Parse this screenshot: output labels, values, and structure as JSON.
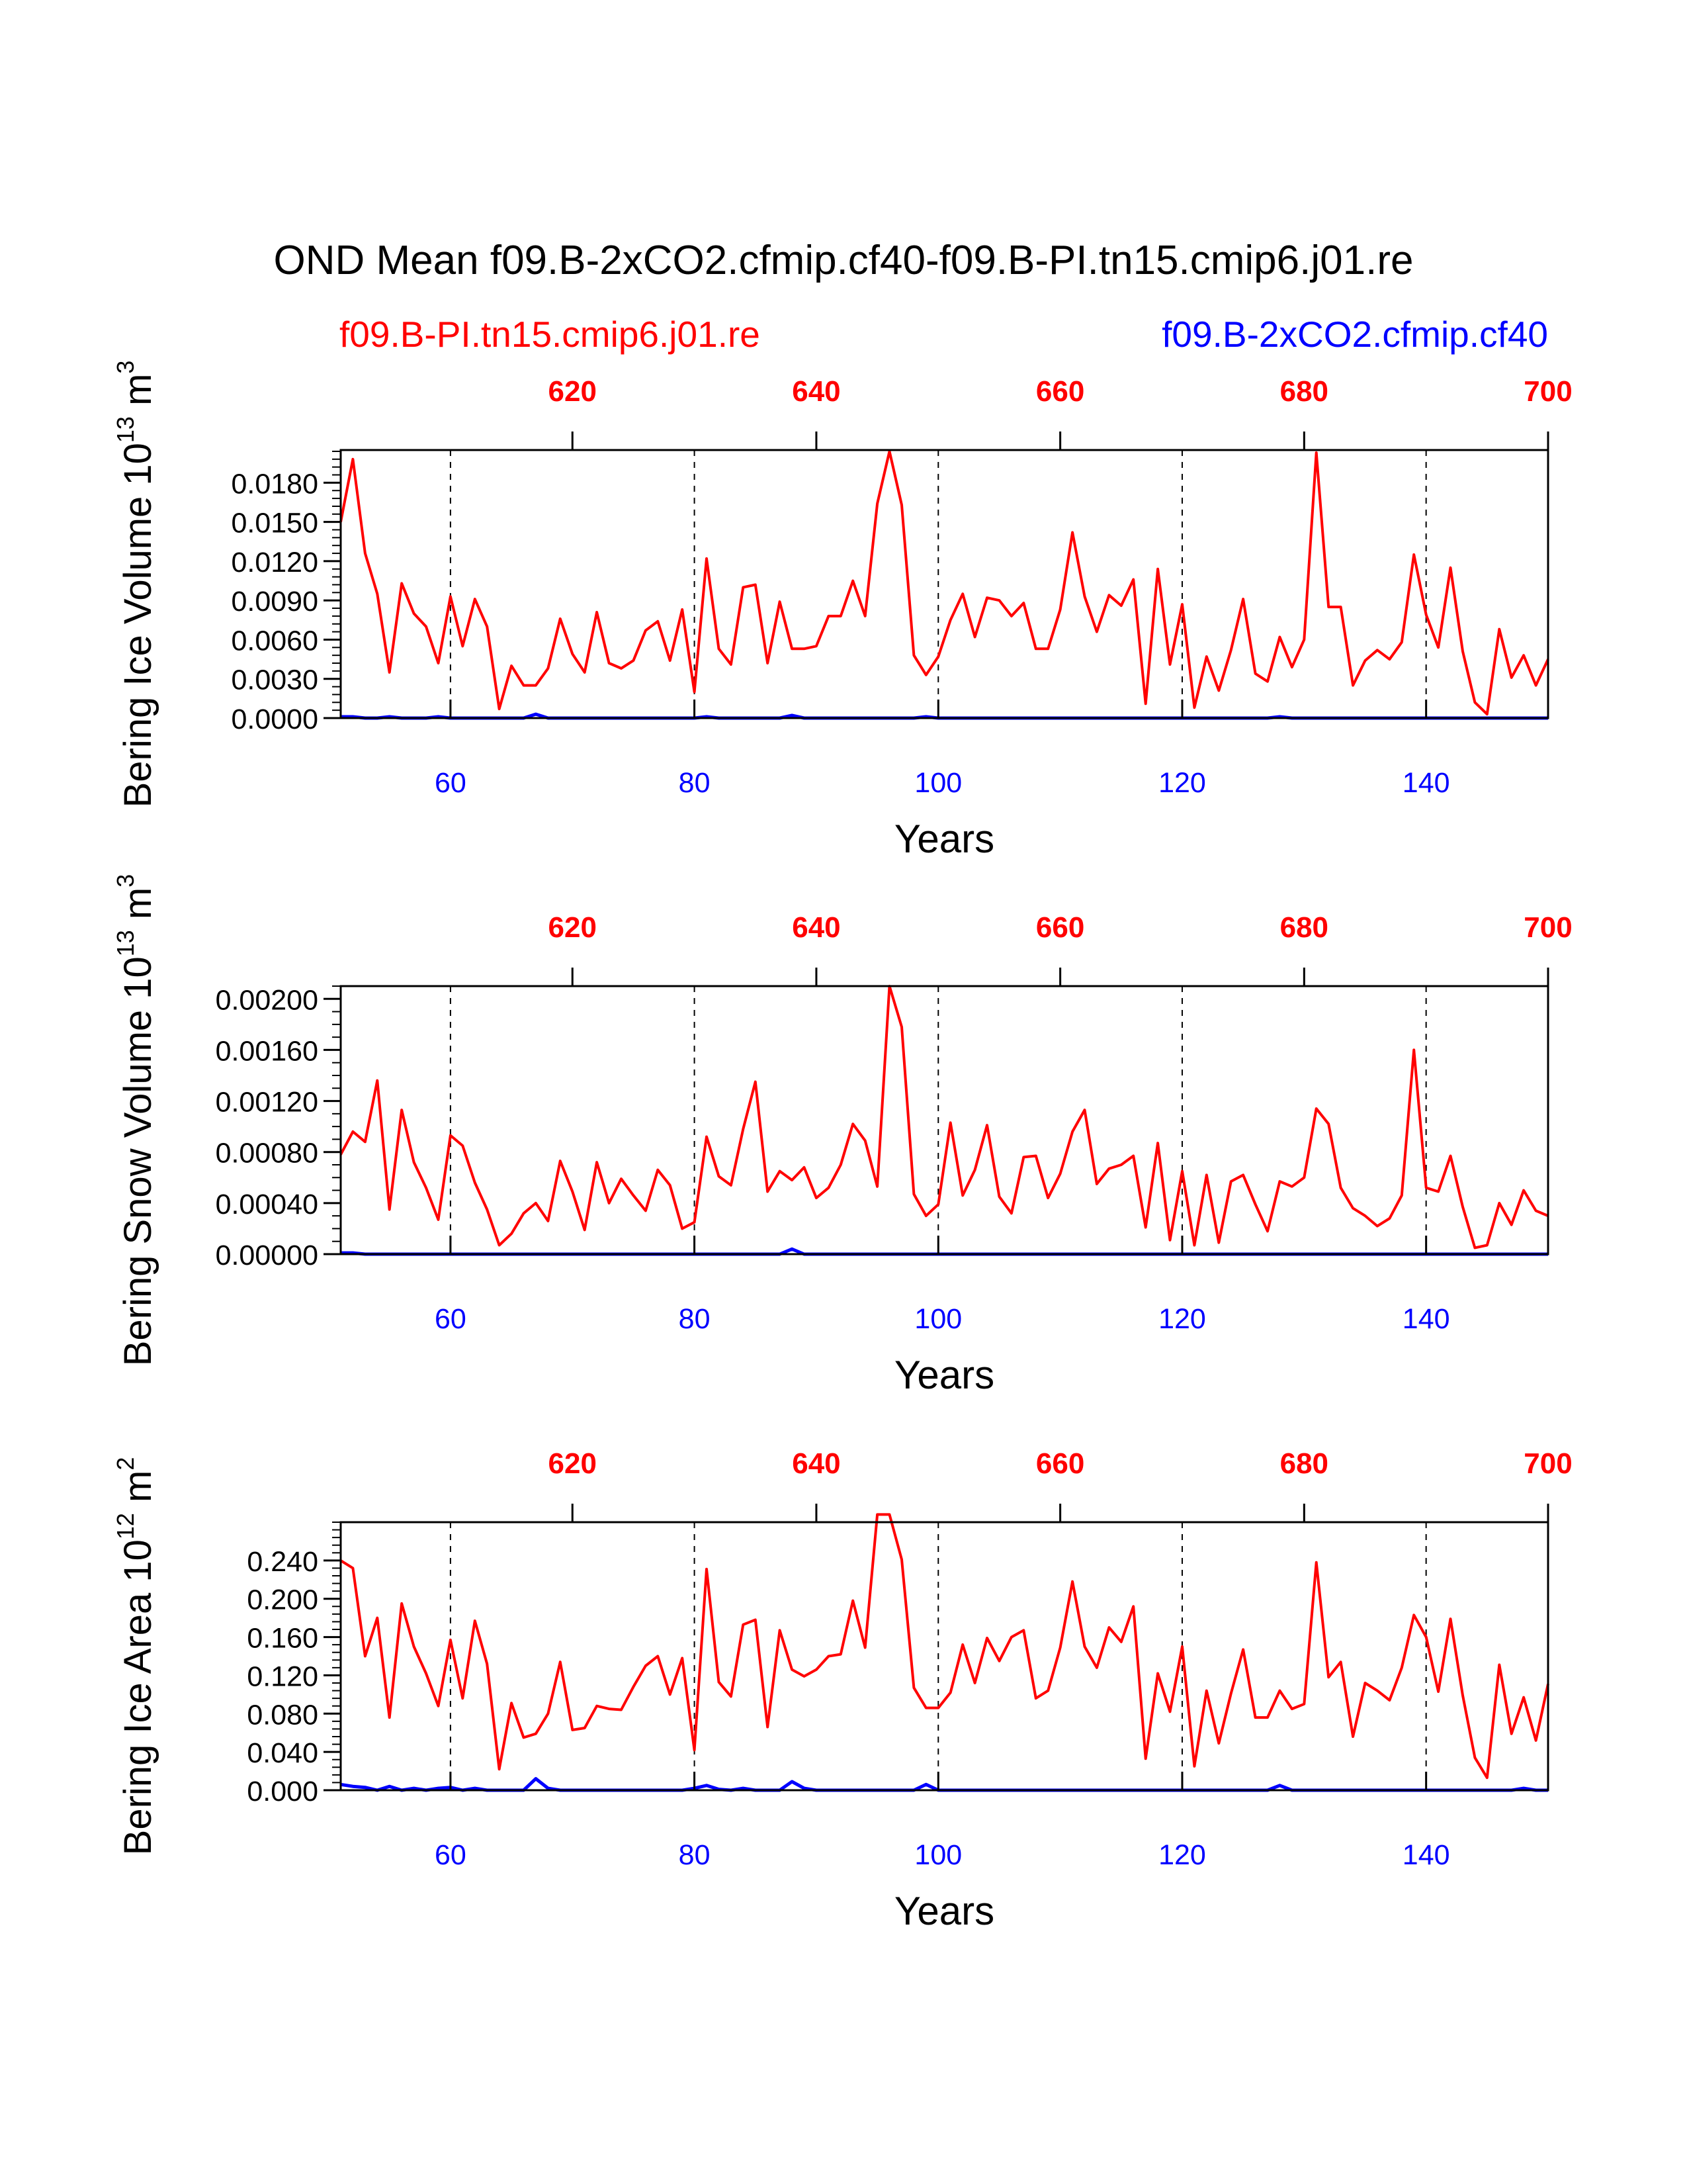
{
  "title": "OND Mean f09.B-2xCO2.cfmip.cf40-f09.B-PI.tn15.cmip6.j01.re",
  "legend": {
    "left": "f09.B-PI.tn15.cmip6.j01.re",
    "right": "f09.B-2xCO2.cfmip.cf40"
  },
  "colors": {
    "control": "#ff0000",
    "experiment": "#0000ff",
    "axis": "#000000"
  },
  "chart_data": [
    {
      "type": "line",
      "ylabel": "Bering Ice Volume 10",
      "ylabel_exp": "13",
      "ylabel_unit": " m",
      "ylabel_unit_exp": "3",
      "xlabel": "Years",
      "xlim": [
        51,
        150
      ],
      "ylim": [
        0,
        0.0205
      ],
      "yticks": [
        0,
        0.003,
        0.006,
        0.009,
        0.012,
        0.015,
        0.018
      ],
      "ytick_labels": [
        "0.0000",
        "0.0030",
        "0.0060",
        "0.0090",
        "0.0120",
        "0.0150",
        "0.0180"
      ],
      "yminor_step": 0.0006,
      "xticks_bottom": [
        60,
        80,
        100,
        120,
        140
      ],
      "xtick_labels_bottom": [
        "60",
        "80",
        "100",
        "120",
        "140"
      ],
      "xticks_top": [
        620,
        640,
        660,
        680,
        700
      ],
      "xtick_labels_top": [
        "620",
        "640",
        "660",
        "680",
        "700"
      ],
      "top_axis_offset": 550,
      "grid_x": [
        60,
        80,
        100,
        120,
        140
      ],
      "series": [
        {
          "name": "f09.B-PI.tn15.cmip6.j01.re",
          "x_start": 51,
          "values": [
            0.015,
            0.0198,
            0.0126,
            0.0095,
            0.0035,
            0.0103,
            0.008,
            0.007,
            0.0042,
            0.0093,
            0.0055,
            0.0091,
            0.007,
            0.0007,
            0.004,
            0.0025,
            0.0025,
            0.0038,
            0.0076,
            0.0049,
            0.0035,
            0.0081,
            0.0042,
            0.0038,
            0.0044,
            0.0067,
            0.0074,
            0.0044,
            0.0083,
            0.002,
            0.0122,
            0.0053,
            0.0041,
            0.01,
            0.0102,
            0.0042,
            0.0089,
            0.0053,
            0.0053,
            0.0055,
            0.0078,
            0.0078,
            0.0105,
            0.0078,
            0.0164,
            0.0204,
            0.0163,
            0.0048,
            0.0033,
            0.0047,
            0.0075,
            0.0095,
            0.0062,
            0.0092,
            0.009,
            0.0078,
            0.0088,
            0.0053,
            0.0053,
            0.0083,
            0.0142,
            0.0093,
            0.0066,
            0.0094,
            0.0086,
            0.0106,
            0.0011,
            0.0114,
            0.0041,
            0.0087,
            0.0008,
            0.0047,
            0.0021,
            0.0052,
            0.0091,
            0.0034,
            0.0028,
            0.0062,
            0.0039,
            0.006,
            0.0203,
            0.0085,
            0.0085,
            0.0025,
            0.0044,
            0.0052,
            0.0045,
            0.0058,
            0.0125,
            0.0079,
            0.0054,
            0.0115,
            0.0051,
            0.0012,
            0.0003,
            0.0068,
            0.0031,
            0.0048,
            0.0025,
            0.0045
          ]
        },
        {
          "name": "f09.B-2xCO2.cfmip.cf40",
          "x_start": 51,
          "values": [
            0.0001,
            0.0001,
            0,
            0,
            0.0001,
            0,
            0,
            0,
            0.0001,
            0,
            0,
            0,
            0,
            0,
            0,
            0,
            0.0003,
            0,
            0,
            0,
            0,
            0,
            0,
            0,
            0,
            0,
            0,
            0,
            0,
            0,
            0.0001,
            0,
            0,
            0,
            0,
            0,
            0,
            0.0002,
            0,
            0,
            0,
            0,
            0,
            0,
            0,
            0,
            0,
            0,
            0.0001,
            0,
            0,
            0,
            0,
            0,
            0,
            0,
            0,
            0,
            0,
            0,
            0,
            0,
            0,
            0,
            0,
            0,
            0,
            0,
            0,
            0,
            0,
            0,
            0,
            0,
            0,
            0,
            0,
            0.0001,
            0,
            0,
            0,
            0,
            0,
            0,
            0,
            0,
            0,
            0,
            0,
            0,
            0,
            0,
            0,
            0,
            0,
            0,
            0,
            0,
            0,
            0
          ]
        }
      ]
    },
    {
      "type": "line",
      "ylabel": "Bering Snow Volume 10",
      "ylabel_exp": "13",
      "ylabel_unit": " m",
      "ylabel_unit_exp": "3",
      "xlabel": "Years",
      "xlim": [
        51,
        150
      ],
      "ylim": [
        0,
        0.0021
      ],
      "yticks": [
        0,
        0.0004,
        0.0008,
        0.0012,
        0.0016,
        0.002
      ],
      "ytick_labels": [
        "0.00000",
        "0.00040",
        "0.00080",
        "0.00120",
        "0.00160",
        "0.00200"
      ],
      "yminor_step": 0.0001,
      "xticks_bottom": [
        60,
        80,
        100,
        120,
        140
      ],
      "xtick_labels_bottom": [
        "60",
        "80",
        "100",
        "120",
        "140"
      ],
      "xticks_top": [
        620,
        640,
        660,
        680,
        700
      ],
      "xtick_labels_top": [
        "620",
        "640",
        "660",
        "680",
        "700"
      ],
      "top_axis_offset": 550,
      "grid_x": [
        60,
        80,
        100,
        120,
        140
      ],
      "series": [
        {
          "name": "f09.B-PI.tn15.cmip6.j01.re",
          "x_start": 51,
          "values": [
            0.00078,
            0.00096,
            0.00088,
            0.00136,
            0.00035,
            0.00113,
            0.00072,
            0.00052,
            0.00027,
            0.00093,
            0.00085,
            0.00056,
            0.00035,
            7e-05,
            0.00016,
            0.00032,
            0.0004,
            0.00026,
            0.00073,
            0.00049,
            0.00019,
            0.00072,
            0.0004,
            0.00059,
            0.00046,
            0.00034,
            0.00066,
            0.00054,
            0.0002,
            0.00025,
            0.00092,
            0.00061,
            0.00054,
            0.00098,
            0.00135,
            0.00049,
            0.00065,
            0.00058,
            0.00068,
            0.00044,
            0.00052,
            0.0007,
            0.00102,
            0.00089,
            0.00053,
            0.0021,
            0.00178,
            0.00047,
            0.0003,
            0.00039,
            0.00103,
            0.00046,
            0.00066,
            0.00101,
            0.00045,
            0.00032,
            0.00076,
            0.00077,
            0.00044,
            0.00063,
            0.00096,
            0.00113,
            0.00055,
            0.00067,
            0.0007,
            0.00077,
            0.00021,
            0.00087,
            0.00011,
            0.00065,
            7e-05,
            0.00062,
            9e-05,
            0.00057,
            0.00062,
            0.00039,
            0.00018,
            0.00057,
            0.00053,
            0.0006,
            0.00114,
            0.00102,
            0.00052,
            0.00036,
            0.0003,
            0.00022,
            0.00028,
            0.00046,
            0.0016,
            0.00052,
            0.00049,
            0.00077,
            0.00037,
            5e-05,
            7e-05,
            0.0004,
            0.00023,
            0.0005,
            0.00034,
            0.0003
          ]
        },
        {
          "name": "f09.B-2xCO2.cfmip.cf40",
          "x_start": 51,
          "values": [
            1e-05,
            1e-05,
            0,
            0,
            0,
            0,
            0,
            0,
            0,
            0,
            0,
            0,
            0,
            0,
            0,
            0,
            0,
            0,
            0,
            0,
            0,
            0,
            0,
            0,
            0,
            0,
            0,
            0,
            0,
            0,
            0,
            0,
            0,
            0,
            0,
            0,
            0,
            4e-05,
            0,
            0,
            0,
            0,
            0,
            0,
            0,
            0,
            0,
            0,
            0,
            0,
            0,
            0,
            0,
            0,
            0,
            0,
            0,
            0,
            0,
            0,
            0,
            0,
            0,
            0,
            0,
            0,
            0,
            0,
            0,
            0,
            0,
            0,
            0,
            0,
            0,
            0,
            0,
            0,
            0,
            0,
            0,
            0,
            0,
            0,
            0,
            0,
            0,
            0,
            0,
            0,
            0,
            0,
            0,
            0,
            0,
            0,
            0,
            0,
            0,
            0
          ]
        }
      ]
    },
    {
      "type": "line",
      "ylabel": "Bering Ice Area 10",
      "ylabel_exp": "12",
      "ylabel_unit": " m",
      "ylabel_unit_exp": "2",
      "xlabel": "Years",
      "xlim": [
        51,
        150
      ],
      "ylim": [
        0,
        0.28
      ],
      "yticks": [
        0,
        0.04,
        0.08,
        0.12,
        0.16,
        0.2,
        0.24
      ],
      "ytick_labels": [
        "0.000",
        "0.040",
        "0.080",
        "0.120",
        "0.160",
        "0.200",
        "0.240"
      ],
      "yminor_step": 0.008,
      "xticks_bottom": [
        60,
        80,
        100,
        120,
        140
      ],
      "xtick_labels_bottom": [
        "60",
        "80",
        "100",
        "120",
        "140"
      ],
      "xticks_top": [
        620,
        640,
        660,
        680,
        700
      ],
      "xtick_labels_top": [
        "620",
        "640",
        "660",
        "680",
        "700"
      ],
      "top_axis_offset": 550,
      "grid_x": [
        60,
        80,
        100,
        120,
        140
      ],
      "series": [
        {
          "name": "f09.B-PI.tn15.cmip6.j01.re",
          "x_start": 51,
          "values": [
            0.24,
            0.232,
            0.14,
            0.18,
            0.076,
            0.195,
            0.15,
            0.122,
            0.088,
            0.157,
            0.096,
            0.177,
            0.132,
            0.022,
            0.091,
            0.055,
            0.059,
            0.08,
            0.134,
            0.063,
            0.065,
            0.088,
            0.085,
            0.084,
            0.108,
            0.13,
            0.14,
            0.1,
            0.138,
            0.042,
            0.231,
            0.113,
            0.098,
            0.173,
            0.178,
            0.066,
            0.167,
            0.126,
            0.119,
            0.126,
            0.14,
            0.142,
            0.198,
            0.149,
            0.288,
            0.288,
            0.241,
            0.107,
            0.086,
            0.086,
            0.102,
            0.152,
            0.112,
            0.159,
            0.135,
            0.16,
            0.167,
            0.096,
            0.104,
            0.149,
            0.218,
            0.15,
            0.128,
            0.17,
            0.155,
            0.192,
            0.033,
            0.122,
            0.082,
            0.15,
            0.025,
            0.104,
            0.049,
            0.101,
            0.147,
            0.076,
            0.076,
            0.104,
            0.085,
            0.09,
            0.238,
            0.118,
            0.134,
            0.056,
            0.112,
            0.104,
            0.094,
            0.128,
            0.183,
            0.16,
            0.103,
            0.179,
            0.099,
            0.034,
            0.013,
            0.131,
            0.059,
            0.097,
            0.052,
            0.111
          ]
        },
        {
          "name": "f09.B-2xCO2.cfmip.cf40",
          "x_start": 51,
          "values": [
            0.006,
            0.004,
            0.003,
            0,
            0.004,
            0,
            0.002,
            0,
            0.002,
            0.003,
            0,
            0.002,
            0,
            0,
            0,
            0,
            0.012,
            0.002,
            0,
            0,
            0,
            0,
            0,
            0,
            0,
            0,
            0,
            0,
            0,
            0.002,
            0.005,
            0.001,
            0,
            0.002,
            0,
            0,
            0,
            0.009,
            0.002,
            0,
            0,
            0,
            0,
            0,
            0,
            0,
            0,
            0,
            0.006,
            0,
            0,
            0,
            0,
            0,
            0,
            0,
            0,
            0,
            0,
            0,
            0,
            0,
            0,
            0,
            0,
            0,
            0,
            0,
            0,
            0,
            0,
            0,
            0,
            0,
            0,
            0,
            0,
            0.005,
            0,
            0,
            0,
            0,
            0,
            0,
            0,
            0,
            0,
            0,
            0,
            0,
            0,
            0,
            0,
            0,
            0,
            0,
            0,
            0.002,
            0,
            0
          ]
        }
      ]
    }
  ]
}
